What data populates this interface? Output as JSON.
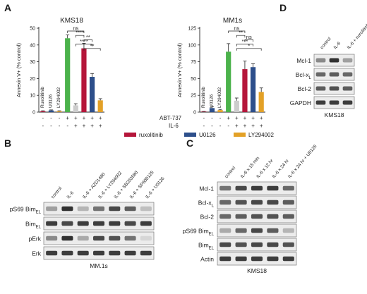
{
  "panels": {
    "A": {
      "label": "A",
      "chart_data": [
        {
          "type": "bar",
          "title": "KMS18",
          "ylabel": "Annexin V+ (% control)",
          "ylim": [
            0,
            50
          ],
          "yticks": [
            "0",
            "10",
            "20",
            "30",
            "40",
            "50"
          ],
          "values": [
            0.5,
            1.0,
            0.5,
            44,
            4,
            38,
            21,
            7
          ],
          "errors": [
            0.3,
            0.3,
            0.3,
            2,
            1,
            3,
            2,
            1
          ],
          "inbar_labels": [
            "Ruxolitinib",
            "U0126",
            "LY294002"
          ],
          "significance": [
            {
              "from": 3,
              "to": 5,
              "text": "ns"
            },
            {
              "from": 4,
              "to": 5,
              "text": "****"
            },
            {
              "from": 5,
              "to": 6,
              "text": "**"
            },
            {
              "from": 4,
              "to": 6,
              "text": "****"
            },
            {
              "from": 5,
              "to": 7,
              "text": "**"
            }
          ]
        },
        {
          "type": "bar",
          "title": "MM1s",
          "ylabel": "Annexin V+ (% control)",
          "ylim": [
            0,
            125
          ],
          "yticks": [
            "0",
            "25",
            "50",
            "75",
            "100",
            "125"
          ],
          "values": [
            0.5,
            6,
            3,
            90,
            17,
            64,
            67,
            30
          ],
          "errors": [
            0.5,
            2,
            1,
            12,
            4,
            12,
            5,
            6
          ],
          "inbar_labels": [
            "Ruxolitinib",
            "U0126",
            "LY294002"
          ],
          "significance": [
            {
              "from": 3,
              "to": 5,
              "text": "ns"
            },
            {
              "from": 4,
              "to": 5,
              "text": "**"
            },
            {
              "from": 5,
              "to": 6,
              "text": "ns"
            },
            {
              "from": 4,
              "to": 6,
              "text": "***"
            },
            {
              "from": 4,
              "to": 7,
              "text": "*"
            }
          ]
        }
      ],
      "treatments": {
        "row1_label": "ABT-737",
        "row2_label": "IL-6",
        "row1": [
          "-",
          "-",
          "-",
          "+",
          "+",
          "+",
          "+",
          "+"
        ],
        "row2": [
          "-",
          "-",
          "-",
          "-",
          "+",
          "+",
          "+",
          "+"
        ]
      },
      "legend": [
        {
          "name": "ruxolitinib",
          "color": "#b5163a"
        },
        {
          "name": "U0126",
          "color": "#2d4f8b"
        },
        {
          "name": "LY294002",
          "color": "#e3a127"
        }
      ],
      "bar_colors": [
        "#b5163a",
        "#2d4f8b",
        "#e3a127",
        "#4bb24b",
        "#cccccc",
        "#b5163a",
        "#2d4f8b",
        "#e3a127"
      ]
    },
    "B": {
      "label": "B",
      "columns": [
        "control",
        "IL-6",
        "IL-6 + AZD1480",
        "IL-6 + LY294002",
        "IL-6 + SB203580",
        "IL-6 + SP600125",
        "IL-6 + U0126"
      ],
      "rows": [
        {
          "label": "pS69 Bim",
          "sub": "EL"
        },
        {
          "label": "Bim",
          "sub": "EL"
        },
        {
          "label": "pErk",
          "sub": ""
        },
        {
          "label": "Erk",
          "sub": ""
        }
      ],
      "caption": "MM.1s"
    },
    "C": {
      "label": "C",
      "columns": [
        "control",
        "IL-6 x 15 min",
        "IL-6 x 12 hr",
        "IL-6 x 24 hr",
        "IL-6 x 24 hr + U0126"
      ],
      "rows": [
        {
          "label": "Mcl-1",
          "sub": ""
        },
        {
          "label": "Bcl-x",
          "sub": "L"
        },
        {
          "label": "Bcl-2",
          "sub": ""
        },
        {
          "label": "pS69 Bim",
          "sub": "EL"
        },
        {
          "label": "Bim",
          "sub": "EL"
        },
        {
          "label": "Actin",
          "sub": ""
        }
      ],
      "caption": "KMS18"
    },
    "D": {
      "label": "D",
      "columns": [
        "control",
        "IL-6",
        "IL-6 + ruxolitinib"
      ],
      "rows": [
        {
          "label": "Mcl-1",
          "sub": ""
        },
        {
          "label": "Bcl-x",
          "sub": "L"
        },
        {
          "label": "Bcl-2",
          "sub": ""
        },
        {
          "label": "GAPDH",
          "sub": ""
        }
      ],
      "caption": "KMS18"
    }
  }
}
